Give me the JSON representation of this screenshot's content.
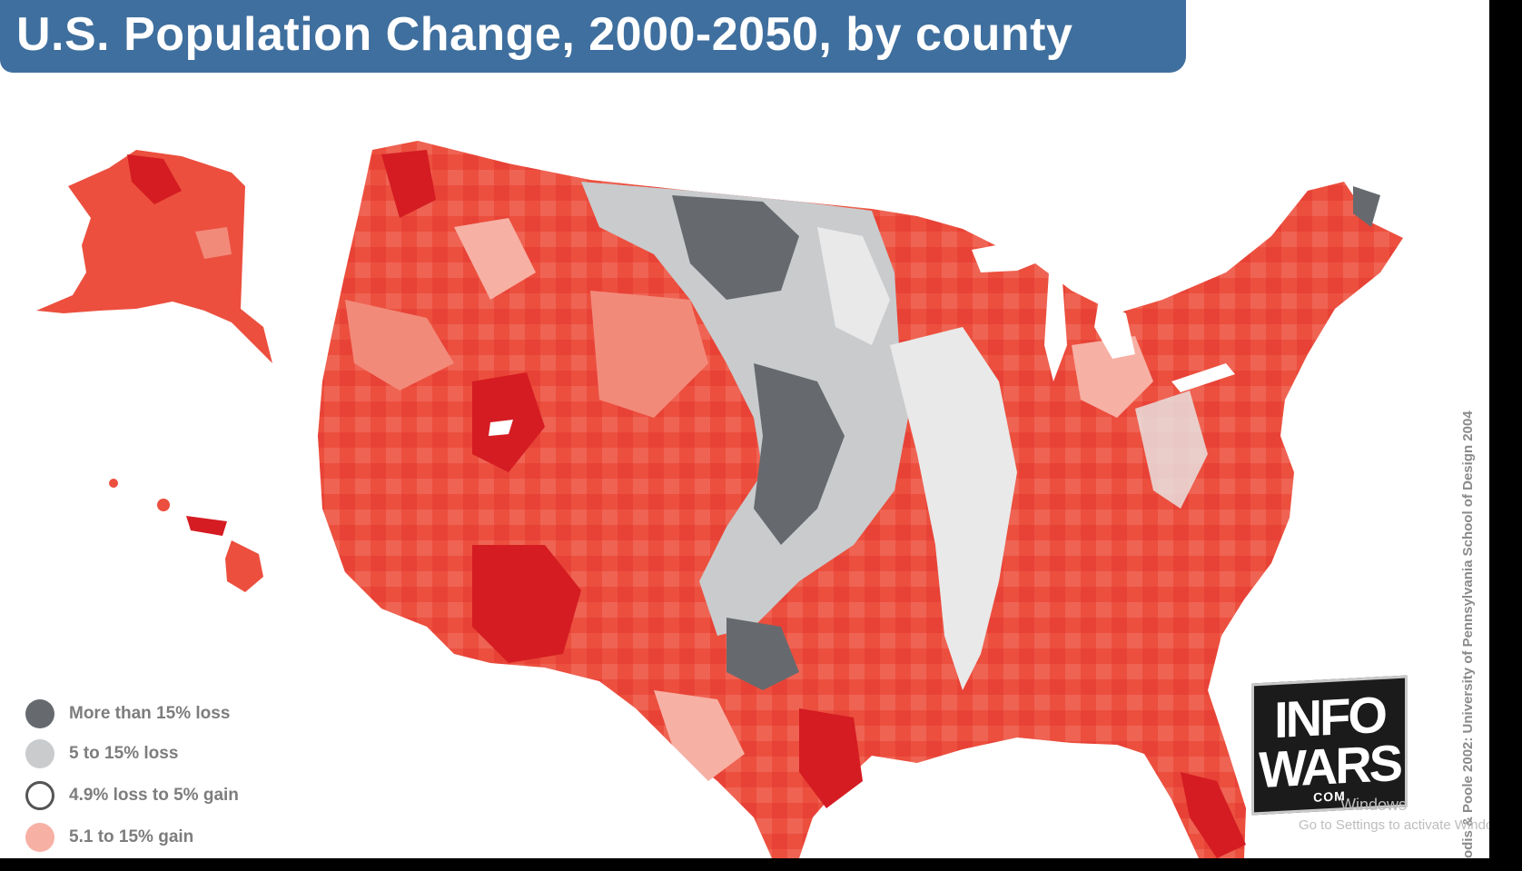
{
  "title": "U.S. Population Change, 2000-2050, by county",
  "legend": [
    {
      "label": "More than 15% loss",
      "color": "#666a6e",
      "outline": false
    },
    {
      "label": "5 to 15% loss",
      "color": "#c9cbcd",
      "outline": false
    },
    {
      "label": "4.9% loss to 5% gain",
      "color": "#ffffff",
      "outline": true
    },
    {
      "label": "5.1 to 15% gain",
      "color": "#f7b0a4",
      "outline": false
    }
  ],
  "map_colors": {
    "strong_gain": "#df2a2a",
    "gain": "#ec4f3e",
    "moderate_gain": "#f28a7a",
    "light_gain": "#f7b0a4",
    "stable": "#e9e9e9",
    "loss": "#c9cbcd",
    "strong_loss": "#666a6e",
    "banner": "#3f6f9e"
  },
  "credit": "odis & Poole 2002: University of Pennsylvania School of Design 2004",
  "logo": {
    "line1": "INFO",
    "line2": "WARS",
    "line3": "COM"
  },
  "watermark": {
    "line1": "Windows",
    "line2": "Go to Settings to activate Windows."
  }
}
